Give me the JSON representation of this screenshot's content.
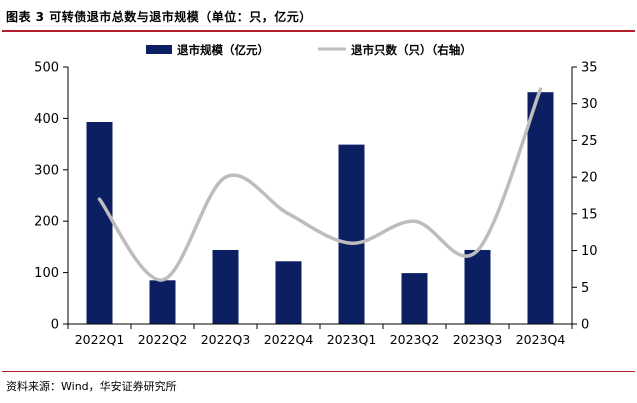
{
  "figure": {
    "title": "图表 3  可转债退市总数与退市规模（单位：只，亿元）",
    "source": "资料来源：Wind，华安证券研究所"
  },
  "colors": {
    "bar": "#0d1f63",
    "line": "#bdbdbd",
    "accent_rule": "#b3202a",
    "axis": "#000000"
  },
  "chart_data": {
    "type": "bar",
    "categories": [
      "2022Q1",
      "2022Q2",
      "2022Q3",
      "2022Q4",
      "2023Q1",
      "2023Q2",
      "2023Q3",
      "2023Q4"
    ],
    "series": [
      {
        "name": "退市规模（亿元）",
        "type": "bar",
        "axis": "left",
        "values": [
          393,
          85,
          144,
          122,
          349,
          99,
          144,
          451
        ]
      },
      {
        "name": "退市只数（只）（右轴）",
        "type": "line",
        "smooth": true,
        "axis": "right",
        "values": [
          17,
          6,
          20,
          15,
          11,
          14,
          10,
          32
        ]
      }
    ],
    "ylim": [
      0,
      500
    ],
    "yticks": [
      0,
      100,
      200,
      300,
      400,
      500
    ],
    "y2lim": [
      0,
      35
    ],
    "y2ticks": [
      0,
      5,
      10,
      15,
      20,
      25,
      30,
      35
    ],
    "legend_position": "top-center",
    "grid": false
  }
}
